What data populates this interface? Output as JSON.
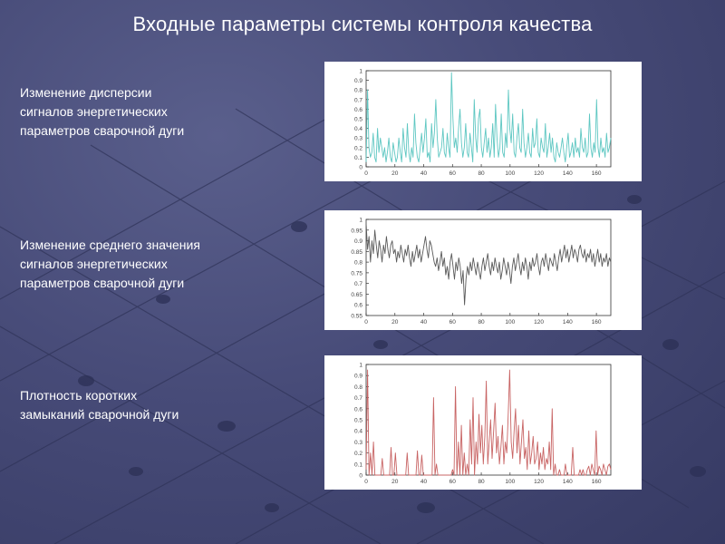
{
  "title": "Входные параметры системы контроля качества",
  "rows": [
    {
      "label_lines": [
        "Изменение дисперсии",
        "сигналов энергетических",
        "параметров сварочной дуги"
      ]
    },
    {
      "label_lines": [
        "Изменение среднего значения",
        "сигналов энергетических",
        "параметров сварочной дуги"
      ]
    },
    {
      "label_lines": [
        "Плотность коротких",
        "замыканий сварочной дуги"
      ]
    }
  ],
  "colors": {
    "chart1_line": "#5ec7c2",
    "chart2_line": "#5a5a5a",
    "chart3_line": "#c86464",
    "background": "#474b78",
    "text": "#ffffff"
  },
  "chart_data": [
    {
      "type": "line",
      "title": "",
      "xlabel": "",
      "ylabel": "",
      "xlim": [
        0,
        170
      ],
      "ylim": [
        0,
        1
      ],
      "x_ticks": [
        "0",
        "20",
        "40",
        "60",
        "80",
        "100",
        "120",
        "140",
        "160"
      ],
      "y_ticks": [
        "0",
        "0.1",
        "0.2",
        "0.3",
        "0.4",
        "0.5",
        "0.6",
        "0.7",
        "0.8",
        "0.9",
        "1"
      ],
      "grid": false,
      "series": [
        {
          "values": [
            0.05,
            0.8,
            0.2,
            0.1,
            0.15,
            0.35,
            0.1,
            0.05,
            0.4,
            0.15,
            0.3,
            0.2,
            0.1,
            0.2,
            0.05,
            0.15,
            0.3,
            0.1,
            0.05,
            0.25,
            0.15,
            0.05,
            0.1,
            0.3,
            0.15,
            0.05,
            0.4,
            0.2,
            0.1,
            0.45,
            0.15,
            0.05,
            0.2,
            0.1,
            0.55,
            0.25,
            0.1,
            0.05,
            0.2,
            0.35,
            0.15,
            0.3,
            0.5,
            0.1,
            0.15,
            0.05,
            0.45,
            0.2,
            0.35,
            0.7,
            0.3,
            0.1,
            0.15,
            0.2,
            0.4,
            0.15,
            0.1,
            0.35,
            0.2,
            0.1,
            0.98,
            0.5,
            0.2,
            0.3,
            0.15,
            0.4,
            0.6,
            0.25,
            0.1,
            0.2,
            0.45,
            0.15,
            0.1,
            0.35,
            0.2,
            0.05,
            0.7,
            0.3,
            0.15,
            0.5,
            0.6,
            0.2,
            0.1,
            0.25,
            0.4,
            0.15,
            0.3,
            0.1,
            0.2,
            0.45,
            0.1,
            0.65,
            0.3,
            0.1,
            0.2,
            0.55,
            0.15,
            0.1,
            0.35,
            0.2,
            0.8,
            0.4,
            0.25,
            0.55,
            0.15,
            0.1,
            0.3,
            0.45,
            0.2,
            0.15,
            0.6,
            0.25,
            0.1,
            0.2,
            0.35,
            0.15,
            0.1,
            0.4,
            0.2,
            0.25,
            0.5,
            0.15,
            0.1,
            0.3,
            0.2,
            0.15,
            0.45,
            0.1,
            0.2,
            0.35,
            0.15,
            0.3,
            0.1,
            0.05,
            0.25,
            0.15,
            0.1,
            0.2,
            0.3,
            0.15,
            0.05,
            0.2,
            0.35,
            0.1,
            0.15,
            0.25,
            0.1,
            0.3,
            0.15,
            0.2,
            0.1,
            0.4,
            0.2,
            0.15,
            0.3,
            0.1,
            0.15,
            0.55,
            0.2,
            0.1,
            0.25,
            0.15,
            0.7,
            0.2,
            0.1,
            0.3,
            0.15,
            0.2,
            0.1,
            0.35,
            0.15,
            0.2,
            0.3
          ]
        }
      ]
    },
    {
      "type": "line",
      "title": "",
      "xlabel": "",
      "ylabel": "",
      "xlim": [
        0,
        170
      ],
      "ylim": [
        0.55,
        1
      ],
      "x_ticks": [
        "0",
        "20",
        "40",
        "60",
        "80",
        "100",
        "120",
        "140",
        "160"
      ],
      "y_ticks": [
        "0.55",
        "0.6",
        "0.65",
        "0.7",
        "0.75",
        "0.8",
        "0.85",
        "0.9",
        "0.95",
        "1"
      ],
      "grid": false,
      "series": [
        {
          "values": [
            0.98,
            0.86,
            0.92,
            0.8,
            0.9,
            0.84,
            0.95,
            0.88,
            0.82,
            0.9,
            0.86,
            0.8,
            0.88,
            0.84,
            0.92,
            0.86,
            0.82,
            0.88,
            0.9,
            0.84,
            0.86,
            0.8,
            0.85,
            0.82,
            0.88,
            0.84,
            0.8,
            0.86,
            0.83,
            0.88,
            0.82,
            0.78,
            0.85,
            0.8,
            0.84,
            0.88,
            0.82,
            0.86,
            0.8,
            0.84,
            0.88,
            0.92,
            0.86,
            0.82,
            0.9,
            0.88,
            0.84,
            0.8,
            0.78,
            0.82,
            0.76,
            0.8,
            0.85,
            0.78,
            0.82,
            0.74,
            0.78,
            0.72,
            0.8,
            0.84,
            0.78,
            0.72,
            0.8,
            0.76,
            0.82,
            0.78,
            0.7,
            0.76,
            0.6,
            0.72,
            0.78,
            0.74,
            0.8,
            0.76,
            0.82,
            0.78,
            0.74,
            0.8,
            0.76,
            0.72,
            0.78,
            0.82,
            0.76,
            0.8,
            0.84,
            0.78,
            0.74,
            0.8,
            0.76,
            0.82,
            0.78,
            0.75,
            0.8,
            0.72,
            0.76,
            0.82,
            0.78,
            0.74,
            0.8,
            0.76,
            0.7,
            0.78,
            0.82,
            0.76,
            0.8,
            0.84,
            0.78,
            0.74,
            0.8,
            0.76,
            0.82,
            0.78,
            0.72,
            0.8,
            0.76,
            0.82,
            0.78,
            0.8,
            0.84,
            0.78,
            0.74,
            0.8,
            0.82,
            0.78,
            0.84,
            0.8,
            0.76,
            0.82,
            0.8,
            0.78,
            0.84,
            0.8,
            0.76,
            0.82,
            0.86,
            0.8,
            0.84,
            0.88,
            0.82,
            0.86,
            0.8,
            0.84,
            0.88,
            0.82,
            0.86,
            0.84,
            0.8,
            0.86,
            0.88,
            0.84,
            0.82,
            0.86,
            0.8,
            0.84,
            0.82,
            0.86,
            0.8,
            0.84,
            0.78,
            0.82,
            0.86,
            0.8,
            0.84,
            0.78,
            0.82,
            0.8,
            0.84,
            0.78,
            0.82,
            0.8
          ]
        }
      ]
    },
    {
      "type": "line",
      "title": "",
      "xlabel": "",
      "ylabel": "",
      "xlim": [
        0,
        170
      ],
      "ylim": [
        0,
        1
      ],
      "x_ticks": [
        "0",
        "20",
        "40",
        "60",
        "80",
        "100",
        "120",
        "140",
        "160"
      ],
      "y_ticks": [
        "0",
        "0.1",
        "0.2",
        "0.3",
        "0.4",
        "0.5",
        "0.6",
        "0.7",
        "0.8",
        "0.9",
        "1"
      ],
      "grid": false,
      "series": [
        {
          "values": [
            0.05,
            0.95,
            0,
            0.2,
            0,
            0.3,
            0,
            0,
            0,
            0,
            0,
            0.15,
            0,
            0,
            0,
            0,
            0,
            0.25,
            0,
            0,
            0.2,
            0,
            0,
            0,
            0,
            0,
            0,
            0,
            0.2,
            0,
            0,
            0,
            0,
            0,
            0,
            0.22,
            0,
            0,
            0.18,
            0,
            0,
            0,
            0,
            0,
            0,
            0,
            0.7,
            0,
            0.1,
            0,
            0,
            0,
            0,
            0,
            0,
            0,
            0,
            0,
            0,
            0.05,
            0,
            0.8,
            0,
            0.3,
            0,
            0.45,
            0,
            0.2,
            0,
            0.1,
            0,
            0.5,
            0.1,
            0.7,
            0,
            0.3,
            0.1,
            0.55,
            0.2,
            0.45,
            0.1,
            0.35,
            0.85,
            0.1,
            0.3,
            0.5,
            0.15,
            0.4,
            0.65,
            0.2,
            0.35,
            0.1,
            0.25,
            0.45,
            0.1,
            0.3,
            0.2,
            0.55,
            0.95,
            0.3,
            0.15,
            0.4,
            0.6,
            0.2,
            0.45,
            0.1,
            0.3,
            0.5,
            0.15,
            0.25,
            0.05,
            0.4,
            0.1,
            0.2,
            0.35,
            0.1,
            0.15,
            0.3,
            0.05,
            0.2,
            0.1,
            0.25,
            0.05,
            0.15,
            0.1,
            0.3,
            0.05,
            0.6,
            0,
            0.1,
            0,
            0,
            0.05,
            0,
            0,
            0,
            0.1,
            0,
            0,
            0,
            0,
            0.25,
            0,
            0,
            0,
            0,
            0.05,
            0,
            0.05,
            0,
            0,
            0.05,
            0.08,
            0,
            0.1,
            0.05,
            0,
            0.4,
            0,
            0.08,
            0.05,
            0,
            0.1,
            0.05,
            0,
            0.08,
            0.1,
            0.05
          ]
        }
      ]
    }
  ]
}
